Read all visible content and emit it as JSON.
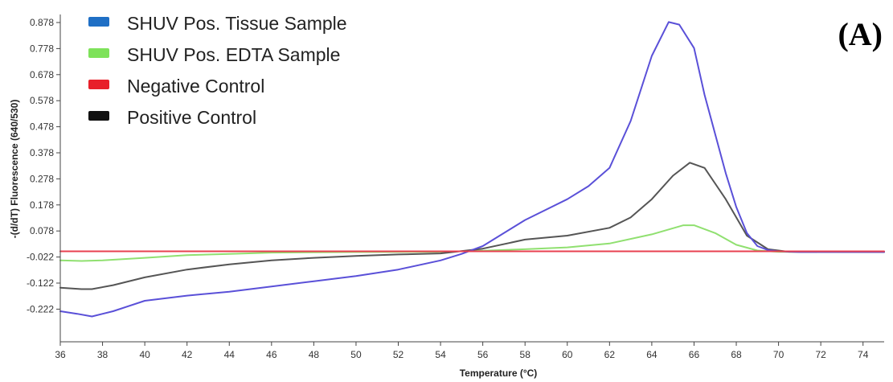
{
  "chart_data": {
    "type": "line",
    "panel_label": "(A)",
    "xlabel": "Temperature (°C)",
    "ylabel": "-(d/dT) Fluorescence (640/530)",
    "xlim": [
      36,
      75
    ],
    "ylim": [
      -0.3,
      0.9
    ],
    "x_ticks": [
      36,
      38,
      40,
      42,
      44,
      46,
      48,
      50,
      52,
      54,
      56,
      58,
      60,
      62,
      64,
      66,
      68,
      70,
      72,
      74
    ],
    "y_ticks": [
      -0.222,
      -0.122,
      -0.022,
      0.078,
      0.178,
      0.278,
      0.378,
      0.478,
      0.578,
      0.678,
      0.778,
      0.878
    ],
    "y_tick_labels": [
      "-0.222",
      "-0.122",
      "-0.022",
      "0.078",
      "0.178",
      "0.278",
      "0.378",
      "0.478",
      "0.578",
      "0.678",
      "0.778",
      "0.878"
    ],
    "grid": false,
    "legend_position": "top-left",
    "series": [
      {
        "name": "SHUV Pos. Tissue Sample",
        "legend_color": "#1f6fc5",
        "line_color": "#5a50d8",
        "points": [
          [
            36,
            -0.23
          ],
          [
            36.8,
            -0.24
          ],
          [
            37.5,
            -0.25
          ],
          [
            38.5,
            -0.23
          ],
          [
            40,
            -0.19
          ],
          [
            42,
            -0.17
          ],
          [
            44,
            -0.155
          ],
          [
            46,
            -0.135
          ],
          [
            48,
            -0.115
          ],
          [
            50,
            -0.095
          ],
          [
            52,
            -0.07
          ],
          [
            54,
            -0.035
          ],
          [
            55,
            -0.01
          ],
          [
            56,
            0.02
          ],
          [
            58,
            0.12
          ],
          [
            60,
            0.2
          ],
          [
            61,
            0.25
          ],
          [
            62,
            0.32
          ],
          [
            63,
            0.5
          ],
          [
            64,
            0.75
          ],
          [
            64.8,
            0.88
          ],
          [
            65.3,
            0.87
          ],
          [
            66,
            0.78
          ],
          [
            66.5,
            0.6
          ],
          [
            67.5,
            0.3
          ],
          [
            68,
            0.17
          ],
          [
            68.5,
            0.07
          ],
          [
            69,
            0.02
          ],
          [
            69.5,
            0.005
          ],
          [
            70,
            0.0
          ],
          [
            71,
            -0.003
          ],
          [
            75,
            -0.003
          ]
        ]
      },
      {
        "name": "SHUV Pos. EDTA Sample",
        "legend_color": "#7ee25a",
        "line_color": "#90e070",
        "points": [
          [
            36,
            -0.035
          ],
          [
            37,
            -0.037
          ],
          [
            38,
            -0.035
          ],
          [
            40,
            -0.025
          ],
          [
            42,
            -0.015
          ],
          [
            44,
            -0.01
          ],
          [
            46,
            -0.005
          ],
          [
            50,
            -0.003
          ],
          [
            54,
            -0.002
          ],
          [
            56,
            0.002
          ],
          [
            58,
            0.008
          ],
          [
            60,
            0.015
          ],
          [
            62,
            0.03
          ],
          [
            64,
            0.065
          ],
          [
            65.5,
            0.1
          ],
          [
            66,
            0.1
          ],
          [
            67,
            0.07
          ],
          [
            68,
            0.025
          ],
          [
            69,
            0.003
          ],
          [
            70,
            -0.002
          ],
          [
            75,
            -0.003
          ]
        ]
      },
      {
        "name": "Negative Control",
        "legend_color": "#e8202a",
        "line_color": "#e84050",
        "points": [
          [
            36,
            0.0
          ],
          [
            75,
            0.0
          ]
        ]
      },
      {
        "name": "Positive Control",
        "legend_color": "#111111",
        "line_color": "#555555",
        "points": [
          [
            36,
            -0.14
          ],
          [
            37,
            -0.145
          ],
          [
            37.5,
            -0.145
          ],
          [
            38.5,
            -0.13
          ],
          [
            40,
            -0.1
          ],
          [
            42,
            -0.07
          ],
          [
            44,
            -0.05
          ],
          [
            46,
            -0.035
          ],
          [
            48,
            -0.025
          ],
          [
            50,
            -0.018
          ],
          [
            52,
            -0.012
          ],
          [
            54,
            -0.008
          ],
          [
            56,
            0.01
          ],
          [
            58,
            0.045
          ],
          [
            60,
            0.06
          ],
          [
            62,
            0.09
          ],
          [
            63,
            0.13
          ],
          [
            64,
            0.2
          ],
          [
            65,
            0.29
          ],
          [
            65.8,
            0.34
          ],
          [
            66.5,
            0.32
          ],
          [
            67.5,
            0.2
          ],
          [
            68.5,
            0.06
          ],
          [
            69.5,
            0.008
          ],
          [
            70.5,
            -0.002
          ],
          [
            75,
            -0.003
          ]
        ]
      }
    ]
  }
}
